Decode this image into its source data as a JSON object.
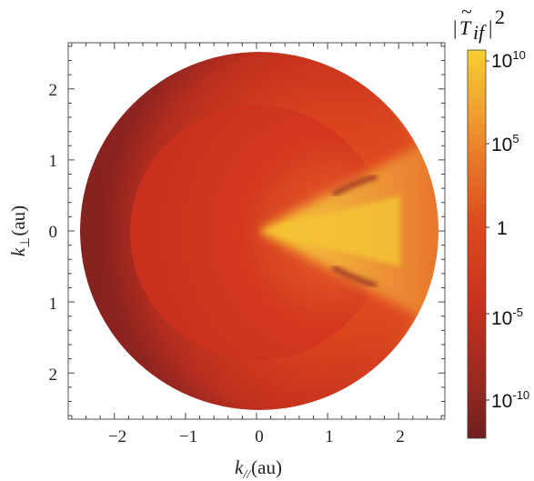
{
  "chart_data": {
    "type": "heatmap",
    "title": "",
    "xlabel": "k// (au)",
    "ylabel": "k⊥ (au)",
    "xlim": [
      -2.65,
      2.65
    ],
    "ylim": [
      -2.65,
      2.65
    ],
    "x_ticks": [
      "−2",
      "−1",
      "0",
      "1",
      "2"
    ],
    "x_tick_values": [
      -2,
      -1,
      0,
      1,
      2
    ],
    "y_ticks": [
      "2",
      "1",
      "0",
      "1",
      "2"
    ],
    "y_tick_values": [
      2,
      1,
      0,
      -1,
      -2
    ],
    "domain": "disk of radius 2.5 au (momentum space)",
    "inner_region_radius": 1.8,
    "features": [
      {
        "name": "bright forward cone",
        "center_angle_deg": 0,
        "half_width_deg": 15,
        "level": "~1 to 10^5"
      },
      {
        "name": "dark ridge upper",
        "from": [
          1.1,
          0.6
        ],
        "to": [
          1.7,
          0.9
        ]
      },
      {
        "name": "dark ridge lower",
        "from": [
          1.1,
          -0.6
        ],
        "to": [
          1.7,
          -0.9
        ]
      }
    ],
    "colorbar": {
      "title": "|T̃ if|²",
      "scale": "log",
      "range": [
        "1e-12",
        "1e11"
      ],
      "tick_labels": [
        "10^10",
        "10^5",
        "1",
        "10^-5",
        "10^-10"
      ],
      "tick_values_log10": [
        10,
        5,
        0,
        -5,
        -10
      ],
      "colors": [
        "#6e1e1e",
        "#9a2a20",
        "#c8321e",
        "#dc4a1e",
        "#e87a28",
        "#f2ac32",
        "#f7cf2e"
      ]
    },
    "grid": false,
    "legend": "none"
  },
  "labels": {
    "xlabel_main": "k",
    "xlabel_sub": "//",
    "xlabel_unit": "(au)",
    "ylabel_main": "k",
    "ylabel_sub": "⊥",
    "ylabel_unit": "(au)",
    "cb_title_left": "|",
    "cb_title_T": "T",
    "cb_title_tilde": "~",
    "cb_title_sub": "if",
    "cb_title_right": "|",
    "cb_title_sup": "2",
    "cb_tick_base": "10",
    "cb_tick_10": "10",
    "cb_tick_5": "5",
    "cb_tick_0": "1",
    "cb_tick_m5": "-5",
    "cb_tick_m10": "-10",
    "x_t0": "−2",
    "x_t1": "−1",
    "x_t2": "0",
    "x_t3": "1",
    "x_t4": "2",
    "y_t0": "2",
    "y_t1": "1",
    "y_t2": "0",
    "y_t3": "1",
    "y_t4": "2"
  }
}
